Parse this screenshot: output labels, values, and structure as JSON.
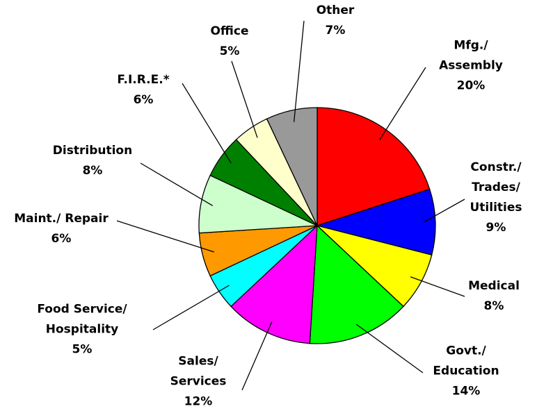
{
  "chart_data": {
    "type": "pie",
    "categories": [
      "Mfg./\nAssembly",
      "Constr./\nTrades/\nUtilities",
      "Medical",
      "Govt./\nEducation",
      "Sales/\nServices",
      "Food Service/\nHospitality",
      "Maint./ Repair",
      "Distribution",
      "F.I.R.E.*",
      "Office",
      "Other"
    ],
    "values": [
      20,
      9,
      8,
      14,
      12,
      5,
      6,
      8,
      6,
      5,
      7
    ],
    "value_labels": [
      "20%",
      "9%",
      "8%",
      "14%",
      "12%",
      "5%",
      "6%",
      "8%",
      "6%",
      "5%",
      "7%"
    ],
    "colors": [
      "#ff0000",
      "#0000ff",
      "#ffff00",
      "#00ff00",
      "#ff00ff",
      "#00ffff",
      "#ff9900",
      "#ccffcc",
      "#008000",
      "#ffffcc",
      "#999999"
    ]
  }
}
